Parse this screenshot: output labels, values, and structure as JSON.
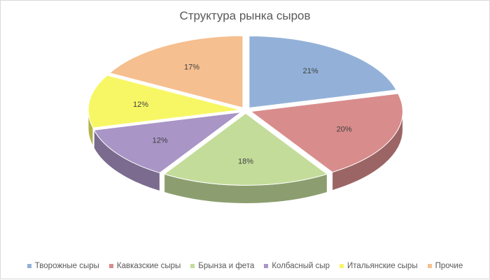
{
  "chart_data": {
    "type": "pie",
    "title": "Структура рынка сыров",
    "categories": [
      "Творожные сыры",
      "Кавказские сыры",
      "Брынза и фета",
      "Колбасный сыр",
      "Итальянские сыры",
      "Прочие"
    ],
    "values": [
      21,
      20,
      18,
      12,
      12,
      17
    ],
    "data_labels": [
      "21%",
      "20%",
      "18%",
      "12%",
      "12%",
      "17%"
    ],
    "colors": [
      "#93b1d8",
      "#d98c8c",
      "#c3dc9a",
      "#a995c6",
      "#f7f766",
      "#f6bf8f"
    ],
    "legend_position": "bottom",
    "style": "3d-exploded"
  }
}
